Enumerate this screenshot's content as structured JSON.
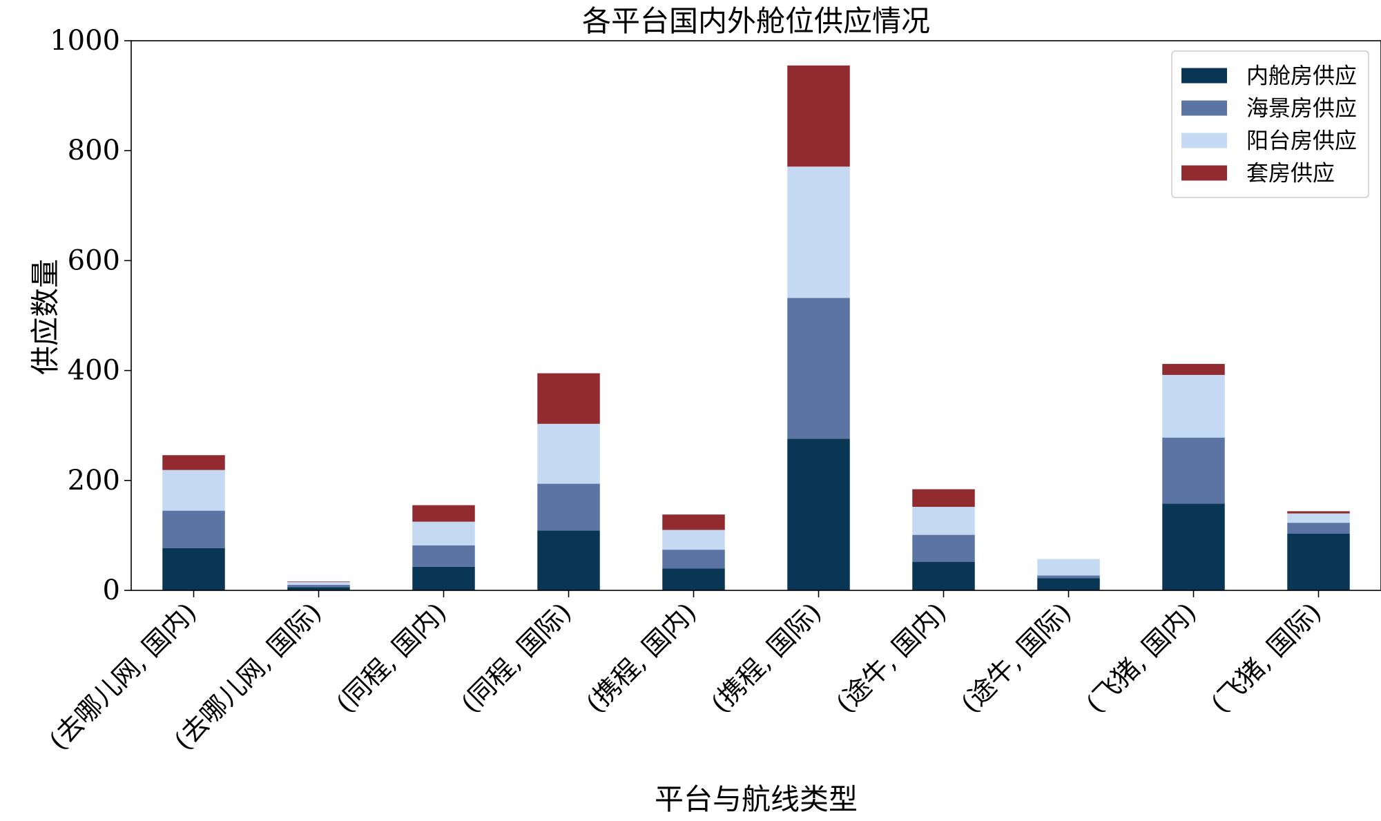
{
  "chart_data": {
    "type": "bar",
    "stacked": true,
    "title": "各平台国内外舱位供应情况",
    "xlabel": "平台与航线类型",
    "ylabel": "供应数量",
    "ylim": [
      0,
      1000
    ],
    "yticks": [
      0,
      200,
      400,
      600,
      800,
      1000
    ],
    "grid": false,
    "legend_position": "top-right",
    "categories": [
      "(去哪儿网, 国内)",
      "(去哪儿网, 国际)",
      "(同程, 国内)",
      "(同程, 国际)",
      "(携程, 国内)",
      "(携程, 国际)",
      "(途牛, 国内)",
      "(途牛, 国际)",
      "(飞猪, 国内)",
      "(飞猪, 国际)"
    ],
    "series": [
      {
        "name": "内舱房供应",
        "color": "#0a3656",
        "values": [
          77,
          6,
          43,
          109,
          40,
          276,
          52,
          22,
          158,
          103
        ]
      },
      {
        "name": "海景房供应",
        "color": "#5c74a4",
        "values": [
          68,
          4,
          39,
          85,
          34,
          256,
          49,
          5,
          120,
          20
        ]
      },
      {
        "name": "阳台房供应",
        "color": "#c5d9f2",
        "values": [
          74,
          5,
          43,
          109,
          36,
          239,
          51,
          30,
          114,
          17
        ]
      },
      {
        "name": "套房供应",
        "color": "#922b30",
        "values": [
          27,
          1,
          30,
          92,
          28,
          184,
          32,
          0,
          20,
          4
        ]
      }
    ]
  }
}
